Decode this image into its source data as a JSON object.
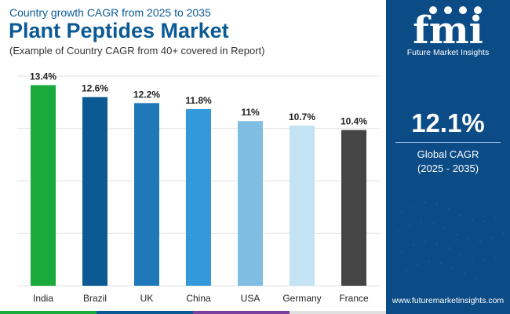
{
  "header": {
    "subtitle": "Country growth CAGR from 2025 to 2035",
    "title": "Plant Peptides Market",
    "note": "(Example of Country CAGR from 40+ covered in Report)"
  },
  "chart_data": {
    "type": "bar",
    "categories": [
      "India",
      "Brazil",
      "UK",
      "China",
      "USA",
      "Germany",
      "France"
    ],
    "values": [
      13.4,
      12.6,
      12.2,
      11.8,
      11,
      10.7,
      10.4
    ],
    "value_labels": [
      "13.4%",
      "12.6%",
      "12.2%",
      "11.8%",
      "11%",
      "10.7%",
      "10.4%"
    ],
    "colors": [
      "#1aaa3c",
      "#0b5a94",
      "#1f78b8",
      "#3399da",
      "#7fbde3",
      "#c3e2f4",
      "#454545"
    ],
    "ylim": [
      0,
      14
    ],
    "grid": true,
    "axis_labels_shown": false
  },
  "sidebar": {
    "brand_letters": "fmi",
    "brand_name": "Future Market Insights",
    "cagr_value": "12.1%",
    "cagr_label": "Global CAGR",
    "cagr_period": "(2025 - 2035)",
    "website": "www.futuremarketinsights.com"
  },
  "footer_colors": [
    "#1aaa3c",
    "#0b5a94",
    "#7b3f9e",
    "#e0e0e0"
  ]
}
